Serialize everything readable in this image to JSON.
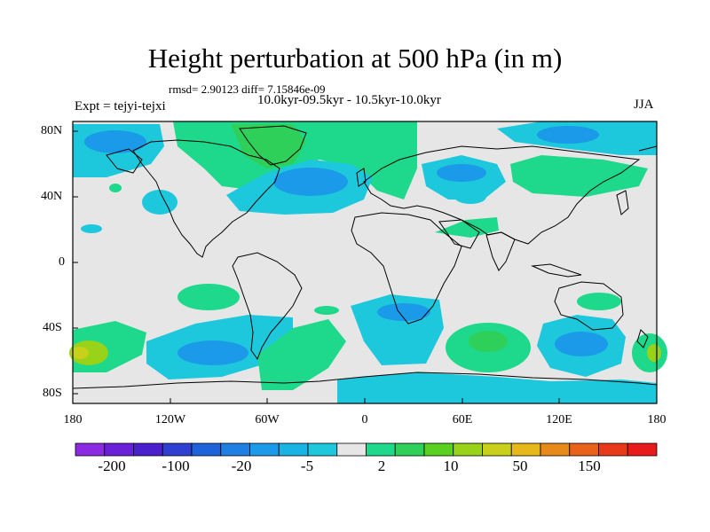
{
  "header": {
    "title": "Height perturbation at 500 hPa (in m)",
    "stats": "rmsd= 2.90123 diff= 7.15846e-09",
    "period": "10.0kyr-09.5kyr - 10.5kyr-10.0kyr",
    "experiment": "Expt = tejyi-tejxi",
    "season": "JJA"
  },
  "axes": {
    "lat_labels": [
      "80N",
      "40N",
      "0",
      "40S",
      "80S"
    ],
    "lon_labels": [
      "180",
      "120W",
      "60W",
      "0",
      "60E",
      "120E",
      "180"
    ]
  },
  "colorbar": {
    "labels": [
      "-200",
      "-100",
      "-20",
      "-5",
      "2",
      "10",
      "50",
      "150"
    ],
    "colors": [
      "#8a2be2",
      "#6a1fd8",
      "#4a20cc",
      "#2f3fd0",
      "#1e63d9",
      "#1f7fe3",
      "#1a9ae8",
      "#18b4e4",
      "#1ec8dc",
      "#e6e6e6",
      "#1ed88c",
      "#2fd05a",
      "#5ad020",
      "#98d219",
      "#c8d01a",
      "#e6b81a",
      "#e88a1a",
      "#e8621a",
      "#e83a1a",
      "#e81a1a"
    ]
  },
  "palette": {
    "background": "#e6e6e6",
    "neg_light": "#1ec8dc",
    "neg_mid": "#1a9ae8",
    "neg_deep": "#1f7fe3",
    "pos_light": "#1ed88c",
    "pos_mid": "#2fd05a",
    "pos_strong": "#98d219",
    "pos_peak": "#c8d01a"
  }
}
